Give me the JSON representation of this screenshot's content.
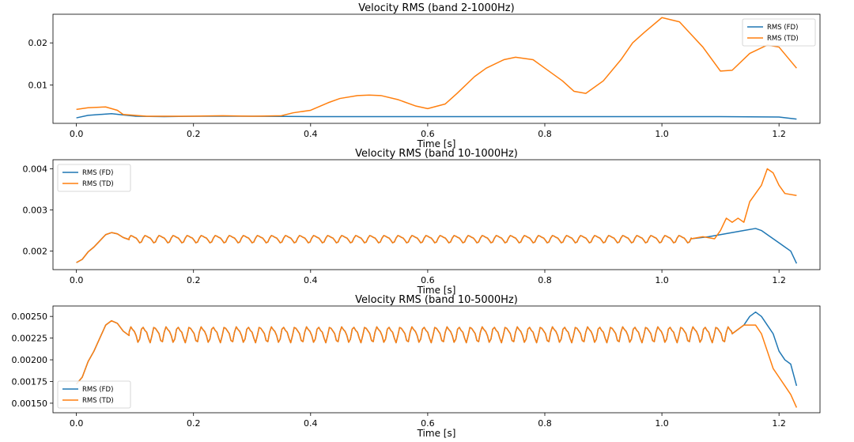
{
  "colors": {
    "fd": "#1f77b4",
    "td": "#ff7f0e"
  },
  "chart_data": [
    {
      "type": "line",
      "title": "Velocity RMS (band 2-1000Hz)",
      "xlabel": "Time [s]",
      "ylabel": "",
      "xlim": [
        -0.04,
        1.27
      ],
      "ylim": [
        0.0009,
        0.0268
      ],
      "xticks": [
        0.0,
        0.2,
        0.4,
        0.6,
        0.8,
        1.0,
        1.2
      ],
      "xtick_labels": [
        "0.0",
        "0.2",
        "0.4",
        "0.6",
        "0.8",
        "1.0",
        "1.2"
      ],
      "yticks": [
        0.01,
        0.02
      ],
      "ytick_labels": [
        "0.01",
        "0.02"
      ],
      "grid": false,
      "legend": "top-right",
      "series": [
        {
          "name": "RMS (FD)",
          "color": "fd",
          "x": [
            0.0,
            0.02,
            0.04,
            0.06,
            0.08,
            0.1,
            0.15,
            0.2,
            0.3,
            0.4,
            0.5,
            0.6,
            0.7,
            0.8,
            0.9,
            1.0,
            1.1,
            1.2,
            1.23
          ],
          "y": [
            0.0022,
            0.0028,
            0.003,
            0.0032,
            0.0029,
            0.0026,
            0.0025,
            0.0026,
            0.0026,
            0.0025,
            0.0025,
            0.0025,
            0.0025,
            0.0025,
            0.0025,
            0.0025,
            0.0025,
            0.0024,
            0.0019
          ]
        },
        {
          "name": "RMS (TD)",
          "color": "td",
          "x": [
            0.0,
            0.02,
            0.05,
            0.07,
            0.08,
            0.1,
            0.12,
            0.15,
            0.2,
            0.25,
            0.3,
            0.35,
            0.37,
            0.4,
            0.43,
            0.45,
            0.48,
            0.5,
            0.52,
            0.55,
            0.58,
            0.6,
            0.63,
            0.65,
            0.68,
            0.7,
            0.73,
            0.75,
            0.78,
            0.8,
            0.83,
            0.85,
            0.87,
            0.9,
            0.93,
            0.95,
            0.97,
            1.0,
            1.03,
            1.05,
            1.07,
            1.1,
            1.12,
            1.15,
            1.18,
            1.2,
            1.23
          ],
          "y": [
            0.0042,
            0.0046,
            0.0048,
            0.004,
            0.003,
            0.0028,
            0.0026,
            0.0026,
            0.0026,
            0.0027,
            0.0026,
            0.0027,
            0.0034,
            0.004,
            0.0058,
            0.0068,
            0.0075,
            0.0076,
            0.0075,
            0.0065,
            0.005,
            0.0044,
            0.0055,
            0.008,
            0.012,
            0.014,
            0.016,
            0.0166,
            0.016,
            0.014,
            0.011,
            0.0085,
            0.008,
            0.011,
            0.016,
            0.02,
            0.0225,
            0.026,
            0.025,
            0.022,
            0.019,
            0.0133,
            0.0135,
            0.0175,
            0.0195,
            0.019,
            0.014
          ]
        }
      ]
    },
    {
      "type": "line",
      "title": "Velocity RMS (band 10-1000Hz)",
      "xlabel": "Time [s]",
      "ylabel": "",
      "xlim": [
        -0.04,
        1.27
      ],
      "ylim": [
        0.00155,
        0.00422
      ],
      "xticks": [
        0.0,
        0.2,
        0.4,
        0.6,
        0.8,
        1.0,
        1.2
      ],
      "xtick_labels": [
        "0.0",
        "0.2",
        "0.4",
        "0.6",
        "0.8",
        "1.0",
        "1.2"
      ],
      "yticks": [
        0.002,
        0.003,
        0.004
      ],
      "ytick_labels": [
        "0.002",
        "0.003",
        "0.004"
      ],
      "grid": false,
      "legend": "top-left",
      "series": [
        {
          "name": "RMS (FD)",
          "color": "fd",
          "x": [
            0.0,
            0.01,
            0.02,
            0.03,
            0.04,
            0.05,
            0.06,
            0.07,
            0.08,
            0.09,
            1.05,
            1.08,
            1.1,
            1.12,
            1.14,
            1.16,
            1.17,
            1.18,
            1.2,
            1.21,
            1.22,
            1.23
          ],
          "y": [
            0.00172,
            0.0018,
            0.00198,
            0.0021,
            0.00225,
            0.0024,
            0.00245,
            0.00242,
            0.00233,
            0.00228,
            0.0023,
            0.00235,
            0.0024,
            0.00245,
            0.0025,
            0.00255,
            0.0025,
            0.0024,
            0.0022,
            0.0021,
            0.002,
            0.0017
          ],
          "osc": {
            "x0": 0.09,
            "x1": 1.05,
            "mean": 0.0023,
            "amp": 8e-05,
            "period": 0.024
          }
        },
        {
          "name": "RMS (TD)",
          "color": "td",
          "x": [
            0.0,
            0.01,
            0.02,
            0.03,
            0.04,
            0.05,
            0.06,
            0.07,
            0.08,
            0.09,
            1.05,
            1.07,
            1.09,
            1.1,
            1.11,
            1.12,
            1.13,
            1.14,
            1.15,
            1.16,
            1.17,
            1.18,
            1.19,
            1.2,
            1.21,
            1.23
          ],
          "y": [
            0.00172,
            0.0018,
            0.00198,
            0.0021,
            0.00225,
            0.0024,
            0.00245,
            0.00242,
            0.00233,
            0.00228,
            0.0023,
            0.00235,
            0.0023,
            0.0025,
            0.0028,
            0.0027,
            0.0028,
            0.0027,
            0.0032,
            0.0034,
            0.0036,
            0.004,
            0.0039,
            0.0036,
            0.0034,
            0.00335
          ],
          "osc": {
            "x0": 0.09,
            "x1": 1.05,
            "mean": 0.0023,
            "amp": 8e-05,
            "period": 0.024
          }
        }
      ]
    },
    {
      "type": "line",
      "title": "Velocity RMS (band 10-5000Hz)",
      "xlabel": "Time [s]",
      "ylabel": "",
      "xlim": [
        -0.04,
        1.27
      ],
      "ylim": [
        0.00139,
        0.00262
      ],
      "xticks": [
        0.0,
        0.2,
        0.4,
        0.6,
        0.8,
        1.0,
        1.2
      ],
      "xtick_labels": [
        "0.0",
        "0.2",
        "0.4",
        "0.6",
        "0.8",
        "1.0",
        "1.2"
      ],
      "yticks": [
        0.0015,
        0.00175,
        0.002,
        0.00225,
        0.0025
      ],
      "ytick_labels": [
        "0.00150",
        "0.00175",
        "0.00200",
        "0.00225",
        "0.00250"
      ],
      "grid": false,
      "legend": "bottom-left",
      "series": [
        {
          "name": "RMS (FD)",
          "color": "fd",
          "x": [
            0.0,
            0.01,
            0.02,
            0.03,
            0.04,
            0.05,
            0.06,
            0.07,
            0.08,
            0.09,
            1.12,
            1.14,
            1.15,
            1.16,
            1.17,
            1.18,
            1.19,
            1.2,
            1.21,
            1.22,
            1.23
          ],
          "y": [
            0.00172,
            0.0018,
            0.00198,
            0.0021,
            0.00225,
            0.0024,
            0.00245,
            0.00242,
            0.00233,
            0.00228,
            0.0023,
            0.0024,
            0.0025,
            0.00255,
            0.0025,
            0.0024,
            0.0023,
            0.0021,
            0.002,
            0.00195,
            0.0017
          ],
          "osc": {
            "x0": 0.09,
            "x1": 1.12,
            "mean": 0.0023,
            "amp": 8e-05,
            "period": 0.02
          }
        },
        {
          "name": "RMS (TD)",
          "color": "td",
          "x": [
            0.0,
            0.01,
            0.02,
            0.03,
            0.04,
            0.05,
            0.06,
            0.07,
            0.08,
            0.09,
            1.12,
            1.14,
            1.15,
            1.16,
            1.17,
            1.18,
            1.19,
            1.2,
            1.21,
            1.22,
            1.23
          ],
          "y": [
            0.00172,
            0.0018,
            0.00198,
            0.0021,
            0.00225,
            0.0024,
            0.00245,
            0.00242,
            0.00233,
            0.00228,
            0.0023,
            0.0024,
            0.0024,
            0.0024,
            0.0023,
            0.0021,
            0.0019,
            0.0018,
            0.0017,
            0.0016,
            0.00145
          ],
          "osc": {
            "x0": 0.09,
            "x1": 1.12,
            "mean": 0.0023,
            "amp": 8e-05,
            "period": 0.02
          }
        }
      ]
    }
  ]
}
